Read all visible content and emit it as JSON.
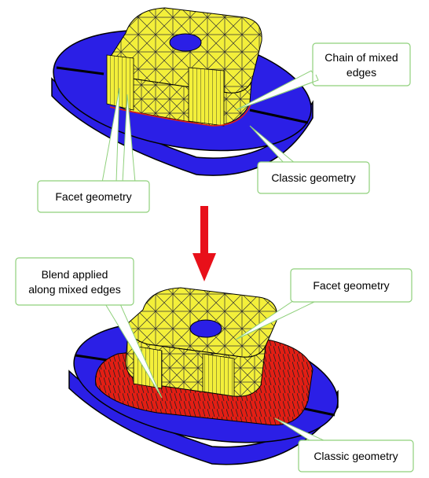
{
  "callouts": {
    "top_mixed_edges_line1": "Chain of mixed",
    "top_mixed_edges_line2": "edges",
    "top_classic": "Classic geometry",
    "top_facet": "Facet geometry",
    "bottom_blend_line1": "Blend applied",
    "bottom_blend_line2": "along mixed edges",
    "bottom_facet": "Facet geometry",
    "bottom_classic": "Classic geometry"
  },
  "colors": {
    "disk": "#2b1fe6",
    "facet": "#f3ef3a",
    "blend": "#e21e14",
    "arrow": "#e8101a",
    "callout_border": "#8fd07b"
  },
  "icons": {
    "transition": "down-arrow-icon"
  }
}
